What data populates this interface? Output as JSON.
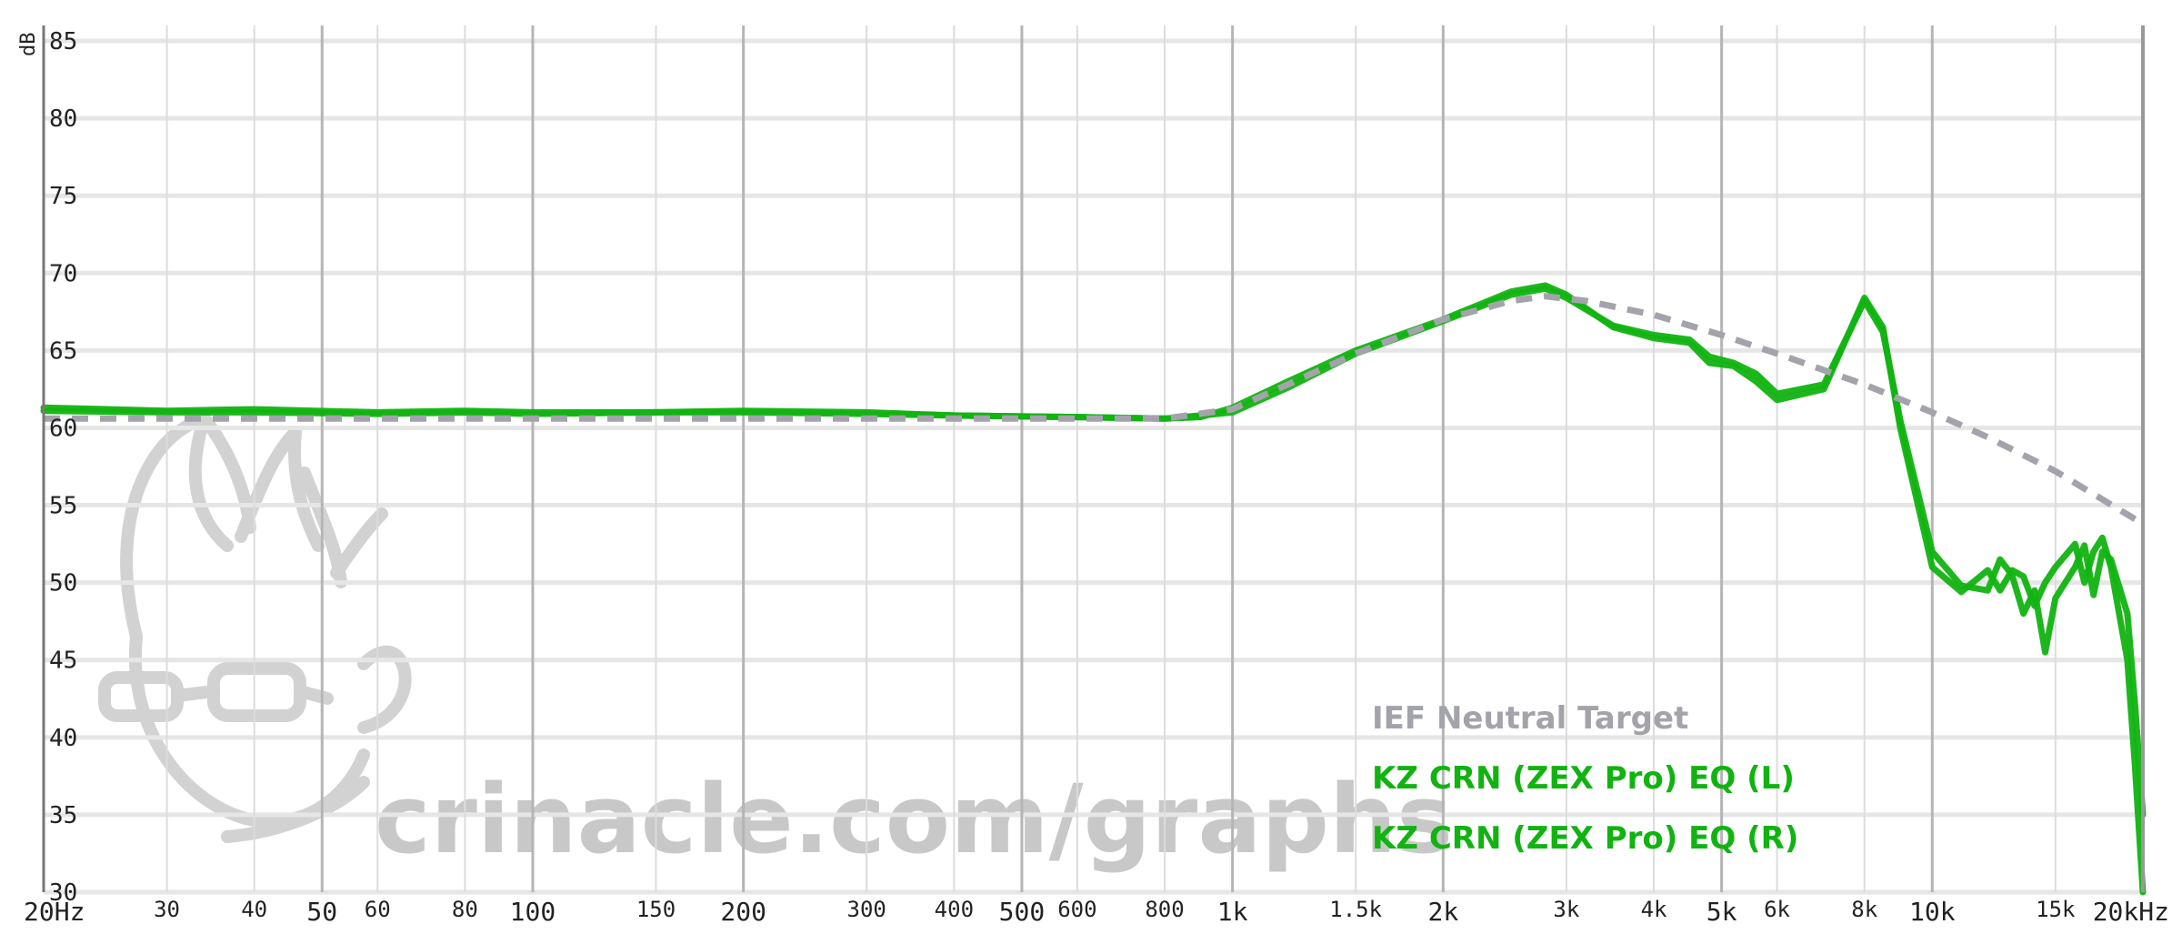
{
  "chart_data": {
    "type": "line",
    "x_scale": "log",
    "xlim": [
      20,
      20000
    ],
    "ylim": [
      30,
      86
    ],
    "ylabel": "dB",
    "y_ticks": [
      30,
      35,
      40,
      45,
      50,
      55,
      60,
      65,
      70,
      75,
      80,
      85
    ],
    "x_ticks": [
      {
        "value": 20,
        "label": "20Hz",
        "major": true
      },
      {
        "value": 30,
        "label": "30",
        "major": false
      },
      {
        "value": 40,
        "label": "40",
        "major": false
      },
      {
        "value": 50,
        "label": "50",
        "major": true
      },
      {
        "value": 60,
        "label": "60",
        "major": false
      },
      {
        "value": 80,
        "label": "80",
        "major": false
      },
      {
        "value": 100,
        "label": "100",
        "major": true
      },
      {
        "value": 150,
        "label": "150",
        "major": false
      },
      {
        "value": 200,
        "label": "200",
        "major": true
      },
      {
        "value": 300,
        "label": "300",
        "major": false
      },
      {
        "value": 400,
        "label": "400",
        "major": false
      },
      {
        "value": 500,
        "label": "500",
        "major": true
      },
      {
        "value": 600,
        "label": "600",
        "major": false
      },
      {
        "value": 800,
        "label": "800",
        "major": false
      },
      {
        "value": 1000,
        "label": "1k",
        "major": true
      },
      {
        "value": 1500,
        "label": "1.5k",
        "major": false
      },
      {
        "value": 2000,
        "label": "2k",
        "major": true
      },
      {
        "value": 3000,
        "label": "3k",
        "major": false
      },
      {
        "value": 4000,
        "label": "4k",
        "major": false
      },
      {
        "value": 5000,
        "label": "5k",
        "major": true
      },
      {
        "value": 6000,
        "label": "6k",
        "major": false
      },
      {
        "value": 8000,
        "label": "8k",
        "major": false
      },
      {
        "value": 10000,
        "label": "10k",
        "major": true
      },
      {
        "value": 15000,
        "label": "15k",
        "major": false
      },
      {
        "value": 20000,
        "label": "20kHz",
        "major": true
      }
    ],
    "grid": true,
    "legend_position": "bottom-right",
    "series": [
      {
        "name": "IEF Neutral Target",
        "color": "#a3a3ab",
        "dashed": true,
        "x": [
          20,
          50,
          100,
          200,
          400,
          600,
          800,
          1000,
          1200,
          1500,
          2000,
          2500,
          2800,
          3200,
          4000,
          5000,
          6000,
          8000,
          10000,
          12000,
          15000,
          20000
        ],
        "y": [
          60.6,
          60.6,
          60.6,
          60.6,
          60.6,
          60.6,
          60.6,
          61.2,
          62.8,
          64.8,
          67.0,
          68.2,
          68.5,
          68.2,
          67.3,
          66.0,
          64.8,
          62.8,
          61.0,
          59.4,
          57.2,
          53.8
        ]
      },
      {
        "name": "KZ CRN (ZEX Pro) EQ (L)",
        "color": "#11b311",
        "dashed": false,
        "x": [
          20,
          30,
          40,
          60,
          80,
          100,
          150,
          200,
          300,
          400,
          600,
          800,
          900,
          1000,
          1200,
          1500,
          2000,
          2500,
          2800,
          3000,
          3500,
          4000,
          4500,
          4800,
          5200,
          5600,
          6000,
          7000,
          8000,
          8500,
          9000,
          10000,
          11000,
          12000,
          12500,
          13000,
          13500,
          14000,
          14500,
          15000,
          16000,
          16500,
          17000,
          17500,
          18000,
          19000,
          19500,
          20000
        ],
        "y": [
          61.3,
          61.1,
          61.2,
          61.0,
          61.1,
          61.0,
          61.0,
          61.1,
          61.0,
          60.8,
          60.7,
          60.6,
          60.7,
          61.3,
          63.0,
          65.0,
          67.0,
          68.8,
          69.2,
          68.6,
          66.5,
          65.8,
          65.5,
          64.2,
          64.0,
          63.0,
          61.8,
          62.5,
          68.4,
          66.5,
          60.0,
          51.0,
          49.4,
          50.8,
          49.5,
          50.8,
          50.4,
          48.5,
          50.0,
          51.0,
          52.5,
          50.0,
          52.0,
          52.9,
          51.0,
          45.0,
          38.0,
          30.0
        ]
      },
      {
        "name": "KZ CRN (ZEX Pro) EQ (R)",
        "color": "#11b311",
        "dashed": false,
        "x": [
          20,
          30,
          40,
          60,
          80,
          100,
          150,
          200,
          300,
          400,
          600,
          800,
          900,
          1000,
          1200,
          1500,
          2000,
          2500,
          2800,
          3000,
          3500,
          4000,
          4500,
          4800,
          5200,
          5600,
          6000,
          7000,
          8000,
          8500,
          9000,
          10000,
          11000,
          12000,
          12500,
          13000,
          13500,
          14000,
          14500,
          15000,
          16000,
          16500,
          17000,
          17500,
          18000,
          19000,
          19500,
          20000
        ],
        "y": [
          61.1,
          61.0,
          61.0,
          60.9,
          61.0,
          60.9,
          61.0,
          61.0,
          60.9,
          60.8,
          60.7,
          60.6,
          60.8,
          61.0,
          62.6,
          64.8,
          66.9,
          68.6,
          69.0,
          68.4,
          66.6,
          66.0,
          65.7,
          64.6,
          64.2,
          63.5,
          62.2,
          62.8,
          68.2,
          66.2,
          60.5,
          52.0,
          49.8,
          49.5,
          51.5,
          50.5,
          48.0,
          49.5,
          45.5,
          49.0,
          51.0,
          52.4,
          49.2,
          52.0,
          51.5,
          48.0,
          42.0,
          35.0
        ]
      }
    ],
    "watermark": "crinacle.com/graphs"
  }
}
